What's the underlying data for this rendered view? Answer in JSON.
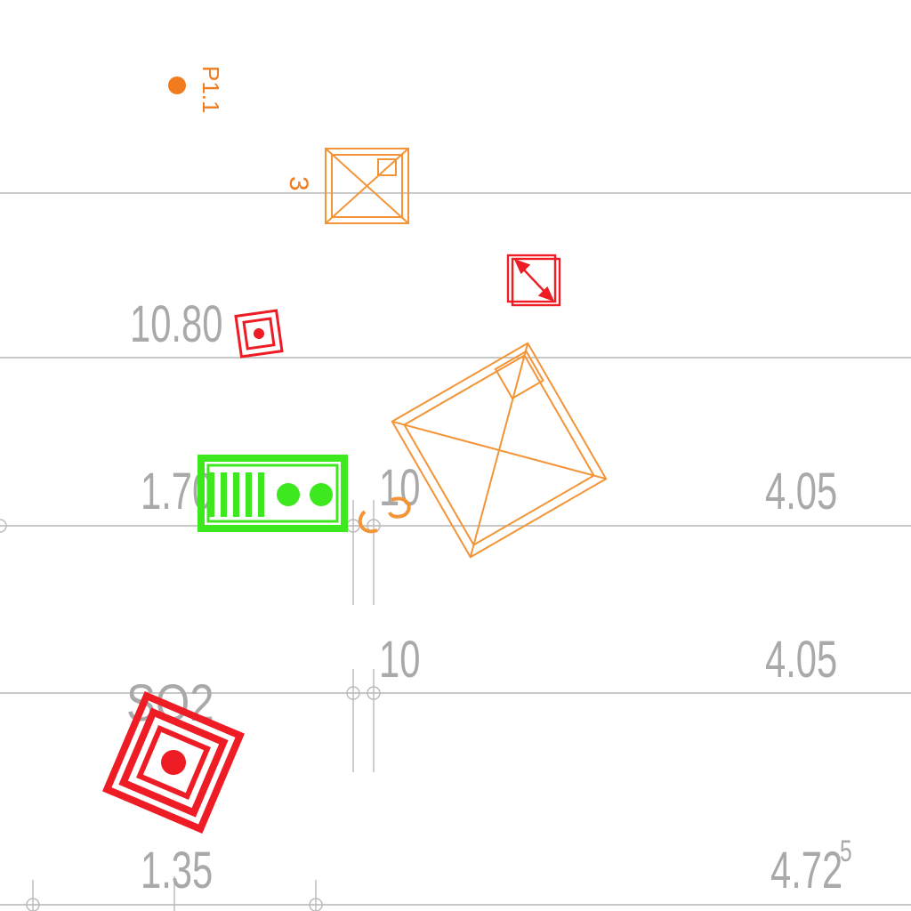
{
  "point_tag": {
    "label": "P1.1"
  },
  "fixtures": {
    "upper_marker": "3",
    "center_marker": "3"
  },
  "gas_label": "SO2",
  "dimensions": {
    "row1_left": "10.80",
    "row2_left": "1.70",
    "row2_mid": "10",
    "row2_right": "4.05",
    "row3_left_fragment": "5",
    "row3_mid": "10",
    "row3_right": "4.05",
    "row4_left": "1.35",
    "row4_right": "4.72",
    "row4_right_sup": "5"
  },
  "colors": {
    "dimension_gray": "#a9a9a9",
    "fixture_orange": "#f39437",
    "alarm_red": "#ee1c24",
    "panel_green": "#3de81e"
  }
}
